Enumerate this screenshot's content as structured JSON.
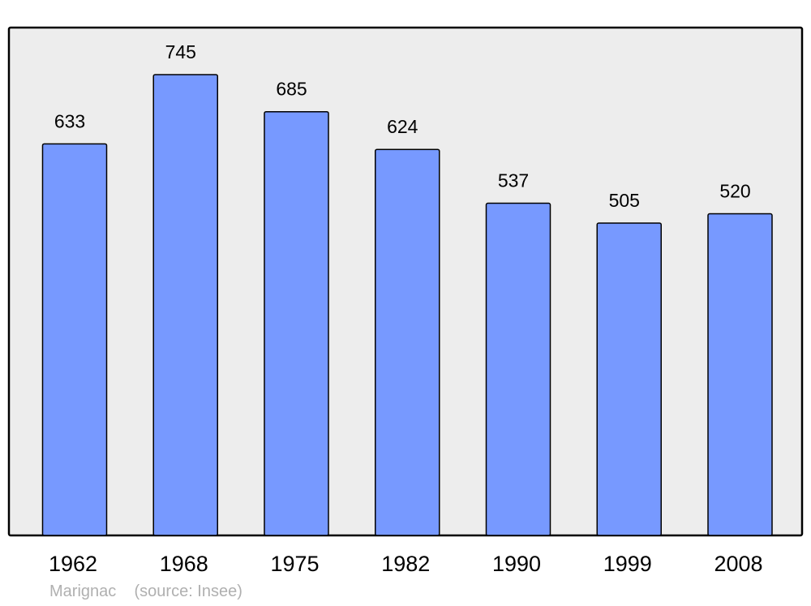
{
  "chart_data": {
    "type": "bar",
    "title": "",
    "xlabel": "",
    "ylabel": "",
    "categories": [
      "1962",
      "1968",
      "1975",
      "1982",
      "1990",
      "1999",
      "2008"
    ],
    "values": [
      633,
      745,
      685,
      624,
      537,
      505,
      520
    ],
    "ylim": [
      0,
      821
    ],
    "grid": false,
    "data_labels": true,
    "colors": {
      "bar": "#7799ff",
      "plot_background": "#ededed",
      "border": "#000000"
    }
  },
  "caption": {
    "place": "Marignac",
    "source": "(source: Insee)"
  }
}
